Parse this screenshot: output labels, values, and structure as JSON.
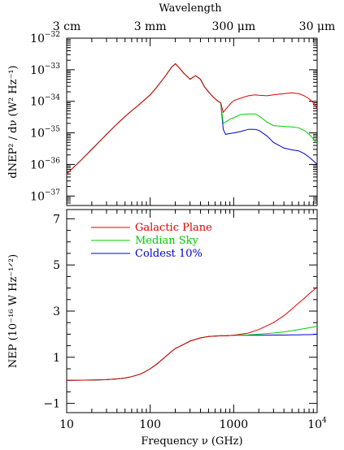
{
  "chart_data": [
    {
      "type": "line",
      "panel": "top",
      "title": "",
      "top_axis_title": "Wavelength",
      "top_axis_ticks": [
        {
          "label": "3 cm",
          "freq_GHz": 10
        },
        {
          "label": "3 mm",
          "freq_GHz": 100
        },
        {
          "label": "300 μm",
          "freq_GHz": 1000
        },
        {
          "label": "30 μm",
          "freq_GHz": 10000
        }
      ],
      "xscale": "log",
      "yscale": "log",
      "xlim": [
        10,
        10000
      ],
      "ylim": [
        5e-38,
        1e-32
      ],
      "ylabel": "dNEP² / dν  (W² Hz⁻¹)",
      "y_ticks": [
        {
          "value": 1e-32,
          "base": "10",
          "exp": "−32"
        },
        {
          "value": 1e-33,
          "base": "10",
          "exp": "−33"
        },
        {
          "value": 1e-34,
          "base": "10",
          "exp": "−34"
        },
        {
          "value": 1e-35,
          "base": "10",
          "exp": "−35"
        },
        {
          "value": 1e-36,
          "base": "10",
          "exp": "−36"
        },
        {
          "value": 1e-37,
          "base": "10",
          "exp": "−37"
        }
      ],
      "shared_curve": {
        "x": [
          10,
          15,
          20,
          30,
          40,
          50,
          60,
          70,
          80,
          100,
          120,
          150,
          180,
          200,
          220,
          250,
          300,
          350,
          400,
          450,
          500,
          550,
          600,
          650,
          700
        ],
        "y": [
          5e-37,
          1.4e-36,
          3e-36,
          9e-36,
          1.9e-35,
          3.3e-35,
          5e-35,
          7e-35,
          9.5e-35,
          1.6e-34,
          2.8e-34,
          6e-34,
          1.2e-33,
          1.55e-33,
          1.2e-33,
          8e-34,
          5e-34,
          6.5e-34,
          5e-34,
          2.8e-34,
          2e-34,
          1.5e-34,
          1.2e-34,
          1e-34,
          9e-35
        ]
      },
      "series": [
        {
          "name": "Galactic Plane",
          "color": "#e00000",
          "x": [
            700,
            750,
            800,
            900,
            1000,
            1200,
            1500,
            1800,
            2000,
            2500,
            3000,
            4000,
            5000,
            6000,
            7000,
            8000,
            9000,
            10000
          ],
          "y": [
            7e-35,
            4.5e-35,
            5.5e-35,
            8e-35,
            1.05e-34,
            1.25e-34,
            1.5e-34,
            1.6e-34,
            1.55e-34,
            1.5e-34,
            1.6e-34,
            1.75e-34,
            1.85e-34,
            1.75e-34,
            1.5e-34,
            1.2e-34,
            9e-35,
            6e-35
          ]
        },
        {
          "name": "Median Sky",
          "color": "#00cc00",
          "x": [
            700,
            750,
            800,
            900,
            1000,
            1200,
            1500,
            1800,
            2000,
            2500,
            3000,
            4000,
            5000,
            6000,
            7000,
            8000,
            9000,
            10000
          ],
          "y": [
            5e-35,
            2e-35,
            2.2e-35,
            2.7e-35,
            3e-35,
            3.8e-35,
            4e-35,
            4e-35,
            3.5e-35,
            2.2e-35,
            1.7e-35,
            1.6e-35,
            1.55e-35,
            1.45e-35,
            1.2e-35,
            9e-36,
            6.5e-36,
            4.5e-36
          ]
        },
        {
          "name": "Coldest 10%",
          "color": "#0000cc",
          "x": [
            700,
            750,
            800,
            900,
            1000,
            1200,
            1500,
            1800,
            2000,
            2500,
            3000,
            4000,
            5000,
            6000,
            7000,
            8000,
            9000,
            10000
          ],
          "y": [
            4e-35,
            1.3e-35,
            9e-36,
            9.5e-36,
            1e-35,
            1.1e-35,
            1.3e-35,
            1.3e-35,
            1.2e-35,
            8e-36,
            5e-36,
            3.3e-36,
            2.9e-36,
            2.7e-36,
            2.2e-36,
            1.7e-36,
            1.3e-36,
            1e-36
          ]
        }
      ]
    },
    {
      "type": "line",
      "panel": "bottom",
      "title": "",
      "xscale": "log",
      "xlim": [
        10,
        10000
      ],
      "ylim": [
        -1.4,
        7.4
      ],
      "xlabel": "Frequency ν (GHz)",
      "ylabel": "NEP (10⁻¹⁶ W Hz⁻¹ᐟ²)",
      "x_ticks": [
        {
          "value": 10,
          "label": "10",
          "exp": ""
        },
        {
          "value": 100,
          "label": "100",
          "exp": ""
        },
        {
          "value": 1000,
          "label": "1000",
          "exp": ""
        },
        {
          "value": 10000,
          "label": "10",
          "exp": "4"
        }
      ],
      "y_ticks": [
        {
          "value": -1,
          "label": "−1"
        },
        {
          "value": 1,
          "label": "1"
        },
        {
          "value": 3,
          "label": "3"
        },
        {
          "value": 5,
          "label": "5"
        },
        {
          "value": 7,
          "label": "7"
        }
      ],
      "legend_position": "top-left",
      "shared_curve": {
        "x": [
          10,
          20,
          30,
          40,
          50,
          60,
          70,
          80,
          100,
          120,
          150,
          180,
          200,
          250,
          300,
          400,
          500,
          600,
          700,
          800,
          1000
        ],
        "y": [
          0.0,
          0.01,
          0.03,
          0.06,
          0.1,
          0.16,
          0.23,
          0.3,
          0.5,
          0.7,
          1.0,
          1.25,
          1.38,
          1.55,
          1.7,
          1.84,
          1.9,
          1.92,
          1.93,
          1.93,
          1.95
        ]
      },
      "series": [
        {
          "name": "Galactic Plane",
          "color": "#e00000",
          "x": [
            1000,
            1500,
            2000,
            3000,
            4000,
            5000,
            6000,
            7000,
            8000,
            9000,
            10000
          ],
          "y": [
            1.95,
            2.05,
            2.2,
            2.5,
            2.8,
            3.1,
            3.35,
            3.55,
            3.75,
            3.9,
            4.05
          ]
        },
        {
          "name": "Median Sky",
          "color": "#00cc00",
          "x": [
            1000,
            1500,
            2000,
            3000,
            4000,
            5000,
            6000,
            7000,
            8000,
            9000,
            10000
          ],
          "y": [
            1.95,
            1.97,
            2.0,
            2.05,
            2.1,
            2.15,
            2.2,
            2.24,
            2.28,
            2.31,
            2.34
          ]
        },
        {
          "name": "Coldest 10%",
          "color": "#0000cc",
          "x": [
            1000,
            1500,
            2000,
            3000,
            4000,
            5000,
            6000,
            7000,
            8000,
            9000,
            10000
          ],
          "y": [
            1.95,
            1.95,
            1.95,
            1.96,
            1.96,
            1.97,
            1.97,
            1.98,
            1.98,
            1.99,
            2.0
          ]
        }
      ]
    }
  ]
}
